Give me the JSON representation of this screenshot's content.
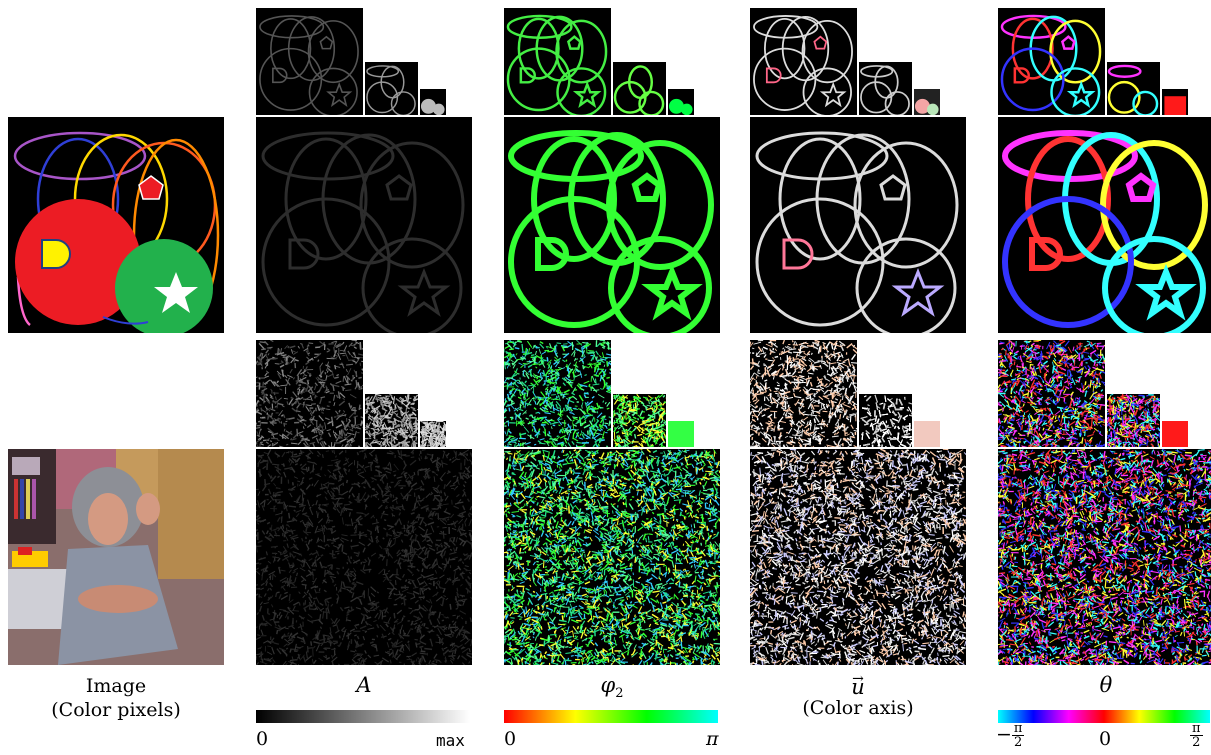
{
  "columns": [
    {
      "id": "image",
      "label_line1": "Image",
      "label_line2": "(Color pixels)"
    },
    {
      "id": "amplitude",
      "symbol": "A",
      "colorbar": {
        "colors": [
          "#000000",
          "#ffffff"
        ],
        "tick_min": "0",
        "tick_max": "max"
      }
    },
    {
      "id": "phase",
      "symbol": "φ",
      "subscript": "2",
      "colorbar": {
        "colors": [
          "#ff0000",
          "#ffff00",
          "#00ff00",
          "#00ffff"
        ],
        "tick_min": "0",
        "tick_max": "π"
      }
    },
    {
      "id": "color-axis",
      "symbol": "u",
      "has_vector_arrow": true,
      "label_line2": "(Color axis)"
    },
    {
      "id": "orientation",
      "symbol": "θ",
      "colorbar": {
        "colors": [
          "#00ffff",
          "#0000ff",
          "#ff00ff",
          "#ff0000",
          "#ffff00",
          "#00ff00",
          "#00ffff"
        ],
        "tick_min_sign": "−",
        "tick_min_num": "π",
        "tick_min_den": "2",
        "tick_mid": "0",
        "tick_max_num": "π",
        "tick_max_den": "2"
      }
    }
  ],
  "palette": {
    "shapes_red": "#ec1c24",
    "shapes_green": "#22b14c",
    "shapes_yellow": "#fff200",
    "amplitude_edge": "#555555",
    "phase_edge": "#33ff33",
    "coloraxis_edge": "#dcdcdc",
    "orientation_edges": [
      "#ff3333",
      "#ff33ff",
      "#33ffff",
      "#ffff33",
      "#3333ff"
    ]
  }
}
